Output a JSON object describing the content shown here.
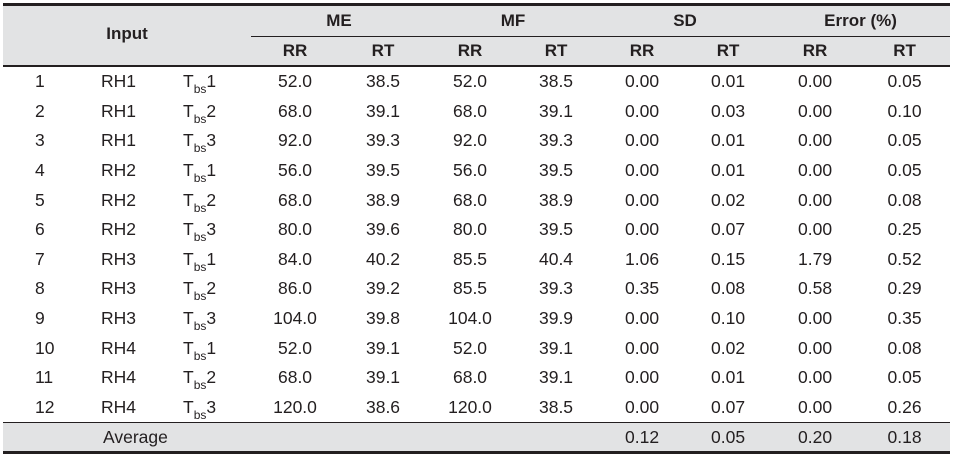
{
  "header": {
    "input_label": "Input",
    "groups": [
      "ME",
      "MF",
      "SD",
      "Error (%)"
    ],
    "subcols": [
      "RR",
      "RT",
      "RR",
      "RT",
      "RR",
      "RT",
      "RR",
      "RT"
    ]
  },
  "rows": [
    {
      "idx": "1",
      "rh": "RH1",
      "t_main": "T",
      "t_sub": "bs",
      "t_num": "1",
      "vals": [
        "52.0",
        "38.5",
        "52.0",
        "38.5",
        "0.00",
        "0.01",
        "0.00",
        "0.05"
      ]
    },
    {
      "idx": "2",
      "rh": "RH1",
      "t_main": "T",
      "t_sub": "bs",
      "t_num": "2",
      "vals": [
        "68.0",
        "39.1",
        "68.0",
        "39.1",
        "0.00",
        "0.03",
        "0.00",
        "0.10"
      ]
    },
    {
      "idx": "3",
      "rh": "RH1",
      "t_main": "T",
      "t_sub": "bs",
      "t_num": "3",
      "vals": [
        "92.0",
        "39.3",
        "92.0",
        "39.3",
        "0.00",
        "0.01",
        "0.00",
        "0.05"
      ]
    },
    {
      "idx": "4",
      "rh": "RH2",
      "t_main": "T",
      "t_sub": "bs",
      "t_num": "1",
      "vals": [
        "56.0",
        "39.5",
        "56.0",
        "39.5",
        "0.00",
        "0.01",
        "0.00",
        "0.05"
      ]
    },
    {
      "idx": "5",
      "rh": "RH2",
      "t_main": "T",
      "t_sub": "bs",
      "t_num": "2",
      "vals": [
        "68.0",
        "38.9",
        "68.0",
        "38.9",
        "0.00",
        "0.02",
        "0.00",
        "0.08"
      ]
    },
    {
      "idx": "6",
      "rh": "RH2",
      "t_main": "T",
      "t_sub": "bs",
      "t_num": "3",
      "vals": [
        "80.0",
        "39.6",
        "80.0",
        "39.5",
        "0.00",
        "0.07",
        "0.00",
        "0.25"
      ]
    },
    {
      "idx": "7",
      "rh": "RH3",
      "t_main": "T",
      "t_sub": "bs",
      "t_num": "1",
      "vals": [
        "84.0",
        "40.2",
        "85.5",
        "40.4",
        "1.06",
        "0.15",
        "1.79",
        "0.52"
      ]
    },
    {
      "idx": "8",
      "rh": "RH3",
      "t_main": "T",
      "t_sub": "bs",
      "t_num": "2",
      "vals": [
        "86.0",
        "39.2",
        "85.5",
        "39.3",
        "0.35",
        "0.08",
        "0.58",
        "0.29"
      ]
    },
    {
      "idx": "9",
      "rh": "RH3",
      "t_main": "T",
      "t_sub": "bs",
      "t_num": "3",
      "vals": [
        "104.0",
        "39.8",
        "104.0",
        "39.9",
        "0.00",
        "0.10",
        "0.00",
        "0.35"
      ]
    },
    {
      "idx": "10",
      "rh": "RH4",
      "t_main": "T",
      "t_sub": "bs",
      "t_num": "1",
      "vals": [
        "52.0",
        "39.1",
        "52.0",
        "39.1",
        "0.00",
        "0.02",
        "0.00",
        "0.08"
      ]
    },
    {
      "idx": "11",
      "rh": "RH4",
      "t_main": "T",
      "t_sub": "bs",
      "t_num": "2",
      "vals": [
        "68.0",
        "39.1",
        "68.0",
        "39.1",
        "0.00",
        "0.01",
        "0.00",
        "0.05"
      ]
    },
    {
      "idx": "12",
      "rh": "RH4",
      "t_main": "T",
      "t_sub": "bs",
      "t_num": "3",
      "vals": [
        "120.0",
        "38.6",
        "120.0",
        "38.5",
        "0.00",
        "0.07",
        "0.00",
        "0.26"
      ]
    }
  ],
  "average": {
    "label": "Average",
    "vals": [
      "0.12",
      "0.05",
      "0.20",
      "0.18"
    ]
  }
}
